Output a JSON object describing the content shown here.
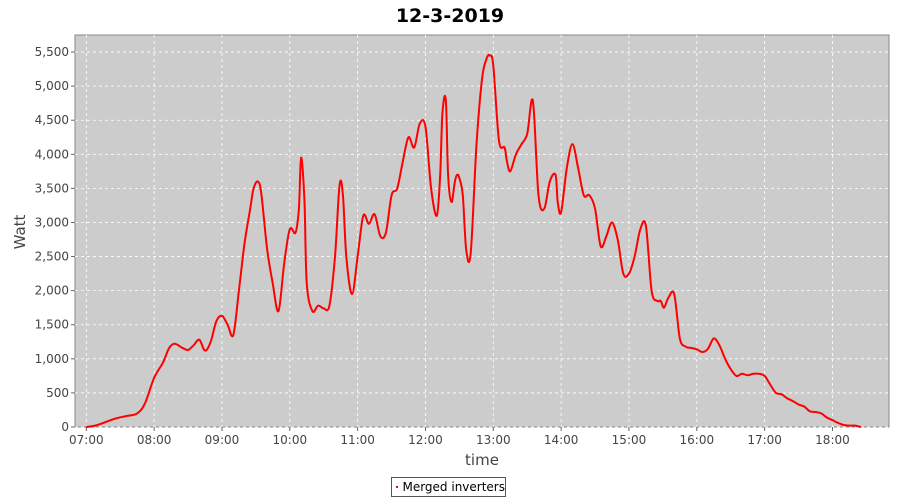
{
  "chart_data": {
    "type": "line",
    "title": "12-3-2019",
    "xlabel": "time",
    "ylabel": "Watt",
    "xlim": [
      "06:50",
      "18:50"
    ],
    "ylim": [
      0,
      5750
    ],
    "x_ticks": [
      "07:00",
      "08:00",
      "09:00",
      "10:00",
      "11:00",
      "12:00",
      "13:00",
      "14:00",
      "15:00",
      "16:00",
      "17:00",
      "18:00"
    ],
    "y_ticks": [
      "0",
      "500",
      "1,000",
      "1,500",
      "2,000",
      "2,500",
      "3,000",
      "3,500",
      "4,000",
      "4,500",
      "5,000",
      "5,500"
    ],
    "grid": true,
    "legend_position": "bottom",
    "colors": {
      "line": "#ff0000",
      "plot_bg": "#cccccc",
      "grid": "#ffffff"
    },
    "series": [
      {
        "name": "Merged inverters",
        "x": [
          "07:00",
          "07:08",
          "07:15",
          "07:25",
          "07:35",
          "07:45",
          "07:52",
          "08:00",
          "08:08",
          "08:13",
          "08:18",
          "08:25",
          "08:30",
          "08:35",
          "08:40",
          "08:45",
          "08:50",
          "08:55",
          "09:00",
          "09:05",
          "09:10",
          "09:15",
          "09:20",
          "09:25",
          "09:28",
          "09:32",
          "09:35",
          "09:40",
          "09:45",
          "09:50",
          "09:55",
          "10:00",
          "10:05",
          "10:08",
          "10:10",
          "10:13",
          "10:15",
          "10:20",
          "10:25",
          "10:30",
          "10:35",
          "10:40",
          "10:44",
          "10:47",
          "10:50",
          "10:55",
          "11:00",
          "11:05",
          "11:10",
          "11:15",
          "11:20",
          "11:25",
          "11:30",
          "11:35",
          "11:40",
          "11:45",
          "11:50",
          "11:55",
          "12:00",
          "12:05",
          "12:10",
          "12:13",
          "12:15",
          "12:18",
          "12:20",
          "12:23",
          "12:26",
          "12:28",
          "12:30",
          "12:33",
          "12:36",
          "12:40",
          "12:45",
          "12:50",
          "12:54",
          "12:57",
          "13:00",
          "13:05",
          "13:10",
          "13:12",
          "13:15",
          "13:20",
          "13:25",
          "13:30",
          "13:35",
          "13:40",
          "13:45",
          "13:50",
          "13:55",
          "13:57",
          "14:00",
          "14:05",
          "14:10",
          "14:15",
          "14:20",
          "14:25",
          "14:30",
          "14:35",
          "14:40",
          "14:45",
          "14:50",
          "14:55",
          "15:00",
          "15:05",
          "15:10",
          "15:15",
          "15:20",
          "15:25",
          "15:28",
          "15:31",
          "15:35",
          "15:40",
          "15:45",
          "15:50",
          "15:55",
          "16:00",
          "16:05",
          "16:10",
          "16:15",
          "16:20",
          "16:25",
          "16:30",
          "16:35",
          "16:40",
          "16:45",
          "16:50",
          "16:55",
          "17:00",
          "17:05",
          "17:10",
          "17:15",
          "17:20",
          "17:25",
          "17:30",
          "17:35",
          "17:40",
          "17:45",
          "17:50",
          "17:55",
          "18:00",
          "18:05",
          "18:10",
          "18:15",
          "18:20",
          "18:25"
        ],
        "values": [
          0,
          20,
          60,
          120,
          160,
          200,
          350,
          720,
          950,
          1150,
          1220,
          1160,
          1130,
          1200,
          1280,
          1120,
          1250,
          1550,
          1630,
          1500,
          1350,
          2000,
          2700,
          3200,
          3500,
          3600,
          3400,
          2600,
          2100,
          1700,
          2400,
          2900,
          2850,
          3200,
          3950,
          3300,
          2100,
          1700,
          1780,
          1740,
          1780,
          2500,
          3550,
          3400,
          2500,
          1950,
          2500,
          3100,
          2980,
          3120,
          2800,
          2850,
          3400,
          3500,
          3900,
          4250,
          4100,
          4450,
          4400,
          3500,
          3100,
          3700,
          4600,
          4800,
          3700,
          3300,
          3600,
          3700,
          3650,
          3400,
          2600,
          2550,
          4100,
          5100,
          5400,
          5450,
          5300,
          4200,
          4100,
          3900,
          3750,
          4000,
          4150,
          4300,
          4780,
          3400,
          3200,
          3600,
          3700,
          3300,
          3150,
          3800,
          4150,
          3800,
          3400,
          3400,
          3200,
          2650,
          2800,
          3000,
          2750,
          2250,
          2250,
          2500,
          2900,
          2950,
          2000,
          1850,
          1850,
          1750,
          1900,
          1950,
          1300,
          1180,
          1160,
          1140,
          1100,
          1150,
          1300,
          1200,
          1000,
          850,
          750,
          780,
          760,
          780,
          780,
          750,
          620,
          500,
          480,
          420,
          380,
          330,
          300,
          230,
          220,
          200,
          140,
          100,
          60,
          30,
          20,
          20,
          0
        ]
      }
    ]
  }
}
